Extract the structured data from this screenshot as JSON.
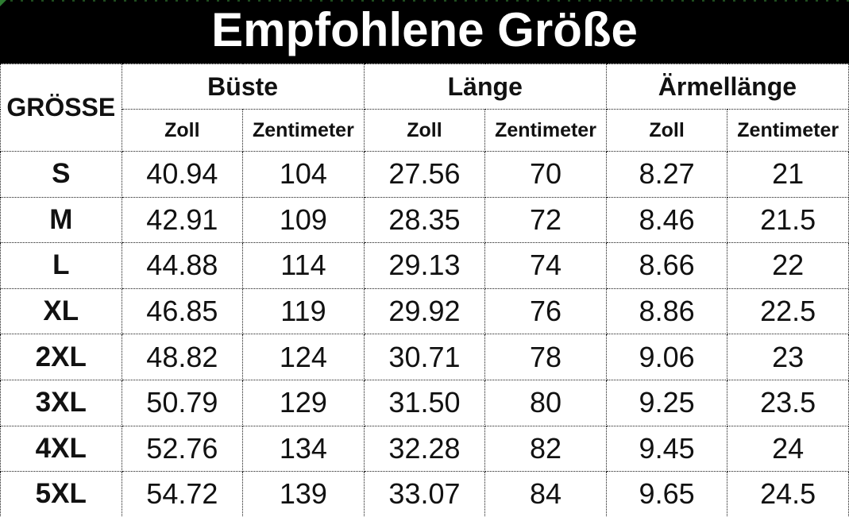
{
  "title": "Empfohlene Größe",
  "table": {
    "size_header": "GRÖSSE",
    "groups": [
      {
        "label": "Büste",
        "sub": [
          "Zoll",
          "Zentimeter"
        ]
      },
      {
        "label": "Länge",
        "sub": [
          "Zoll",
          "Zentimeter"
        ]
      },
      {
        "label": "Ärmellänge",
        "sub": [
          "Zoll",
          "Zentimeter"
        ]
      }
    ],
    "rows": [
      {
        "cells": [
          "S",
          "40.94",
          "104",
          "27.56",
          "70",
          "8.27",
          "21"
        ]
      },
      {
        "cells": [
          "M",
          "42.91",
          "109",
          "28.35",
          "72",
          "8.46",
          "21.5"
        ]
      },
      {
        "cells": [
          "L",
          "44.88",
          "114",
          "29.13",
          "74",
          "8.66",
          "22"
        ]
      },
      {
        "cells": [
          "XL",
          "46.85",
          "119",
          "29.92",
          "76",
          "8.86",
          "22.5"
        ]
      },
      {
        "cells": [
          "2XL",
          "48.82",
          "124",
          "30.71",
          "78",
          "9.06",
          "23"
        ]
      },
      {
        "cells": [
          "3XL",
          "50.79",
          "129",
          "31.50",
          "80",
          "9.25",
          "23.5"
        ]
      },
      {
        "cells": [
          "4XL",
          "52.76",
          "134",
          "32.28",
          "82",
          "9.45",
          "24"
        ]
      },
      {
        "cells": [
          "5XL",
          "54.72",
          "139",
          "33.07",
          "84",
          "9.65",
          "24.5"
        ]
      }
    ]
  },
  "chart_data": {
    "type": "table",
    "title": "Empfohlene Größe",
    "columns": [
      "GRÖSSE",
      "Büste Zoll",
      "Büste Zentimeter",
      "Länge Zoll",
      "Länge Zentimeter",
      "Ärmellänge Zoll",
      "Ärmellänge Zentimeter"
    ],
    "rows": [
      [
        "S",
        "40.94",
        "104",
        "27.56",
        "70",
        "8.27",
        "21"
      ],
      [
        "M",
        "42.91",
        "109",
        "28.35",
        "72",
        "8.46",
        "21.5"
      ],
      [
        "L",
        "44.88",
        "114",
        "29.13",
        "74",
        "8.66",
        "22"
      ],
      [
        "XL",
        "46.85",
        "119",
        "29.92",
        "76",
        "8.86",
        "22.5"
      ],
      [
        "2XL",
        "48.82",
        "124",
        "30.71",
        "78",
        "9.06",
        "23"
      ],
      [
        "3XL",
        "50.79",
        "129",
        "31.50",
        "80",
        "9.25",
        "23.5"
      ],
      [
        "4XL",
        "52.76",
        "134",
        "32.28",
        "82",
        "9.45",
        "24"
      ],
      [
        "5XL",
        "54.72",
        "139",
        "33.07",
        "84",
        "9.65",
        "24.5"
      ]
    ]
  },
  "colors": {
    "banner_bg": "#000000",
    "banner_text": "#ffffff",
    "table_text": "#111111",
    "border": "#1a1a1a",
    "corner_marker": "#2e7d32"
  }
}
